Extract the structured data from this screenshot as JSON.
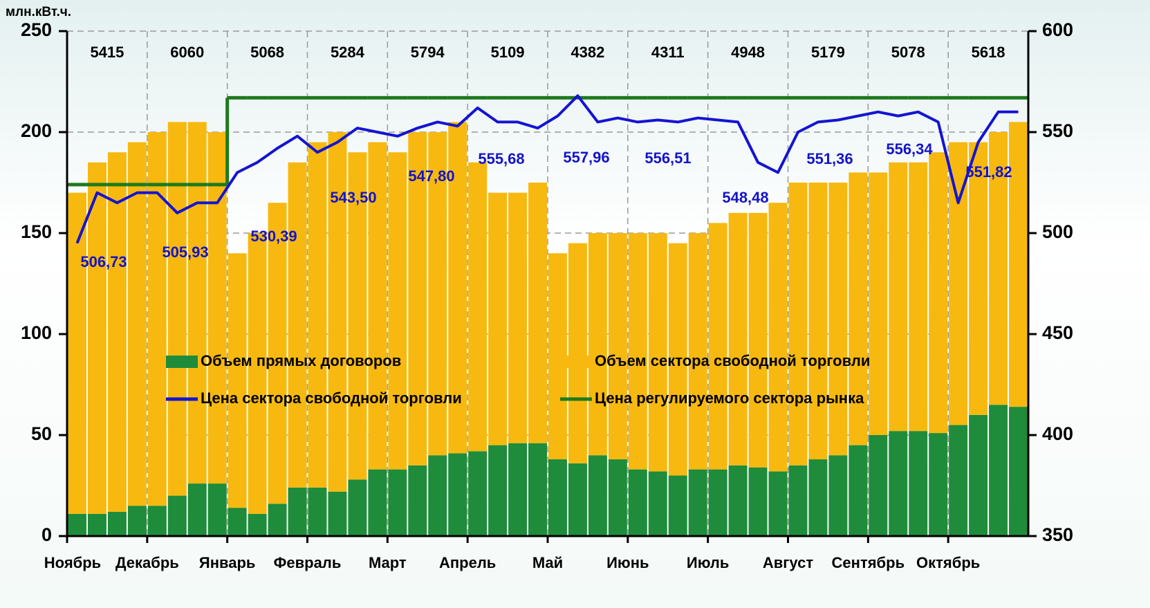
{
  "chart_data": {
    "type": "bar",
    "y_axis_label": "млн.кВт.ч.",
    "categories": [
      "Ноябрь",
      null,
      null,
      null,
      "Декабрь",
      null,
      null,
      null,
      "Январь",
      null,
      null,
      null,
      "Февраль",
      null,
      null,
      null,
      "Март",
      null,
      null,
      null,
      "Апрель",
      null,
      null,
      null,
      "Май",
      null,
      null,
      null,
      "Июнь",
      null,
      null,
      null,
      "Июль",
      null,
      null,
      null,
      "Август",
      null,
      null,
      null,
      "Сентябрь",
      null,
      null,
      null,
      "Октябрь",
      null,
      null,
      null
    ],
    "series": [
      {
        "name": "Объем прямых договоров",
        "color": "#1e8c3a",
        "values": [
          11,
          11,
          12,
          15,
          15,
          20,
          26,
          26,
          14,
          11,
          16,
          24,
          24,
          22,
          28,
          33,
          33,
          35,
          40,
          41,
          42,
          45,
          46,
          46,
          38,
          36,
          40,
          38,
          33,
          32,
          30,
          33,
          33,
          35,
          34,
          32,
          35,
          38,
          40,
          45,
          50,
          52,
          52,
          51,
          55,
          60,
          65,
          64
        ]
      },
      {
        "name": "Объем сектора свободной торговли",
        "color": "#f7b90f",
        "values": [
          159,
          174,
          178,
          180,
          185,
          185,
          179,
          174,
          126,
          139,
          149,
          161,
          171,
          178,
          162,
          162,
          157,
          165,
          160,
          164,
          143,
          125,
          124,
          129,
          102,
          109,
          110,
          112,
          117,
          118,
          115,
          117,
          122,
          125,
          126,
          133,
          140,
          137,
          135,
          135,
          130,
          133,
          133,
          139,
          140,
          135,
          135,
          141
        ]
      },
      {
        "name": "Цена сектора свободной торговли",
        "color": "#1414d2",
        "axis": "y2",
        "values": [
          495,
          520,
          515,
          520,
          520,
          510,
          515,
          515,
          530,
          535,
          542,
          548,
          540,
          545,
          552,
          550,
          548,
          552,
          555,
          553,
          562,
          555,
          555,
          552,
          558,
          568,
          555,
          557,
          555,
          556,
          555,
          557,
          556,
          555,
          535,
          530,
          550,
          555,
          556,
          558,
          560,
          558,
          560,
          555,
          515,
          545,
          560,
          560
        ]
      },
      {
        "name": "Цена регулируемого сектора рынка",
        "color": "#1e7a1e",
        "axis": "y2",
        "values": [
          524,
          524,
          524,
          524,
          524,
          524,
          524,
          524,
          567,
          567,
          567,
          567,
          567,
          567,
          567,
          567,
          567,
          567,
          567,
          567,
          567,
          567,
          567,
          567,
          567,
          567,
          567,
          567,
          567,
          567,
          567,
          567,
          567,
          567,
          567,
          567,
          567,
          567,
          567,
          567,
          567,
          567,
          567,
          567,
          567,
          567,
          567,
          567
        ]
      }
    ],
    "monthly_totals": [
      5415,
      6060,
      5068,
      5284,
      5794,
      5109,
      4382,
      4311,
      4948,
      5179,
      5078,
      5618
    ],
    "monthly_prices": {
      "values": [
        506.73,
        505.93,
        530.39,
        543.5,
        547.8,
        555.68,
        557.96,
        556.51,
        548.48,
        551.36,
        556.34,
        551.82
      ],
      "value_labels": [
        "506,73",
        "505,93",
        "530,39",
        "543,50",
        "547,80",
        "555,68",
        "557,96",
        "556,51",
        "548,48",
        "551,36",
        "556,34",
        "551,82"
      ]
    },
    "ylim": [
      0,
      250
    ],
    "yticks": [
      0,
      50,
      100,
      150,
      200,
      250
    ],
    "y2lim": [
      350,
      600
    ],
    "y2ticks": [
      350,
      400,
      450,
      500,
      550,
      600
    ],
    "grid": true
  }
}
